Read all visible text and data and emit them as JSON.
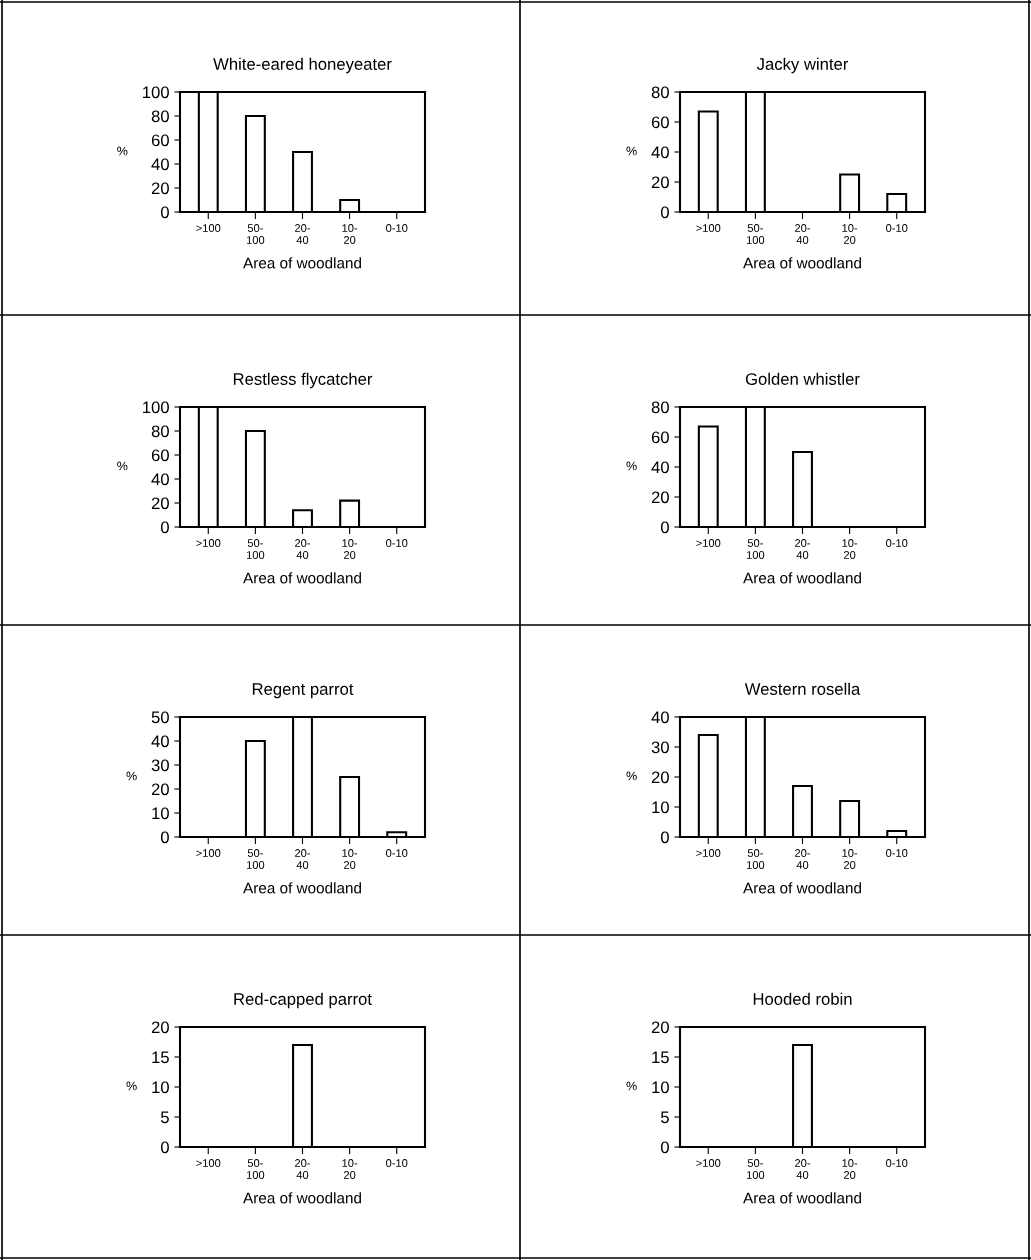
{
  "chart_data": [
    {
      "type": "bar",
      "title": "White-eared honeyeater",
      "xlabel": "Area of woodland",
      "ylabel": "%",
      "categories": [
        ">100",
        "50-\n100",
        "20-\n40",
        "10-\n20",
        "0-10"
      ],
      "values": [
        100,
        80,
        50,
        10,
        0
      ],
      "color": "#ffffff",
      "ylim": [
        0,
        100
      ],
      "yticks": [
        0,
        20,
        40,
        60,
        80,
        100
      ],
      "grid": false,
      "legend": false
    },
    {
      "type": "bar",
      "title": "Jacky winter",
      "xlabel": "Area of woodland",
      "ylabel": "%",
      "categories": [
        ">100",
        "50-\n100",
        "20-\n40",
        "10-\n20",
        "0-10"
      ],
      "values": [
        67,
        80,
        0,
        25,
        12
      ],
      "color": "#ffffff",
      "ylim": [
        0,
        80
      ],
      "yticks": [
        0,
        20,
        40,
        60,
        80
      ],
      "grid": false,
      "legend": false
    },
    {
      "type": "bar",
      "title": "Restless flycatcher",
      "xlabel": "Area of woodland",
      "ylabel": "%",
      "categories": [
        ">100",
        "50-\n100",
        "20-\n40",
        "10-\n20",
        "0-10"
      ],
      "values": [
        100,
        80,
        14,
        22,
        0
      ],
      "color": "#ffffff",
      "ylim": [
        0,
        100
      ],
      "yticks": [
        0,
        20,
        40,
        60,
        80,
        100
      ],
      "grid": false,
      "legend": false
    },
    {
      "type": "bar",
      "title": "Golden whistler",
      "xlabel": "Area of woodland",
      "ylabel": "%",
      "categories": [
        ">100",
        "50-\n100",
        "20-\n40",
        "10-\n20",
        "0-10"
      ],
      "values": [
        67,
        80,
        50,
        0,
        0
      ],
      "color": "#ffffff",
      "ylim": [
        0,
        80
      ],
      "yticks": [
        0,
        20,
        40,
        60,
        80
      ],
      "grid": false,
      "legend": false
    },
    {
      "type": "bar",
      "title": "Regent parrot",
      "xlabel": "Area of woodland",
      "ylabel": "%",
      "categories": [
        ">100",
        "50-\n100",
        "20-\n40",
        "10-\n20",
        "0-10"
      ],
      "values": [
        0,
        40,
        50,
        25,
        2
      ],
      "color": "#ffffff",
      "ylim": [
        0,
        50
      ],
      "yticks": [
        0,
        10,
        20,
        30,
        40,
        50
      ],
      "grid": false,
      "legend": false
    },
    {
      "type": "bar",
      "title": "Western rosella",
      "xlabel": "Area of woodland",
      "ylabel": "%",
      "categories": [
        ">100",
        "50-\n100",
        "20-\n40",
        "10-\n20",
        "0-10"
      ],
      "values": [
        34,
        40,
        17,
        12,
        2
      ],
      "color": "#ffffff",
      "ylim": [
        0,
        40
      ],
      "yticks": [
        0,
        10,
        20,
        30,
        40
      ],
      "grid": false,
      "legend": false
    },
    {
      "type": "bar",
      "title": "Red-capped parrot",
      "xlabel": "Area of woodland",
      "ylabel": "%",
      "categories": [
        ">100",
        "50-\n100",
        "20-\n40",
        "10-\n20",
        "0-10"
      ],
      "values": [
        0,
        0,
        17,
        0,
        0
      ],
      "color": "#ffffff",
      "ylim": [
        0,
        20
      ],
      "yticks": [
        0,
        5,
        10,
        15,
        20
      ],
      "grid": false,
      "legend": false
    },
    {
      "type": "bar",
      "title": "Hooded robin",
      "xlabel": "Area of woodland",
      "ylabel": "%",
      "categories": [
        ">100",
        "50-\n100",
        "20-\n40",
        "10-\n20",
        "0-10"
      ],
      "values": [
        0,
        0,
        17,
        0,
        0
      ],
      "color": "#ffffff",
      "ylim": [
        0,
        20
      ],
      "yticks": [
        0,
        5,
        10,
        15,
        20
      ],
      "grid": false,
      "legend": false
    }
  ]
}
